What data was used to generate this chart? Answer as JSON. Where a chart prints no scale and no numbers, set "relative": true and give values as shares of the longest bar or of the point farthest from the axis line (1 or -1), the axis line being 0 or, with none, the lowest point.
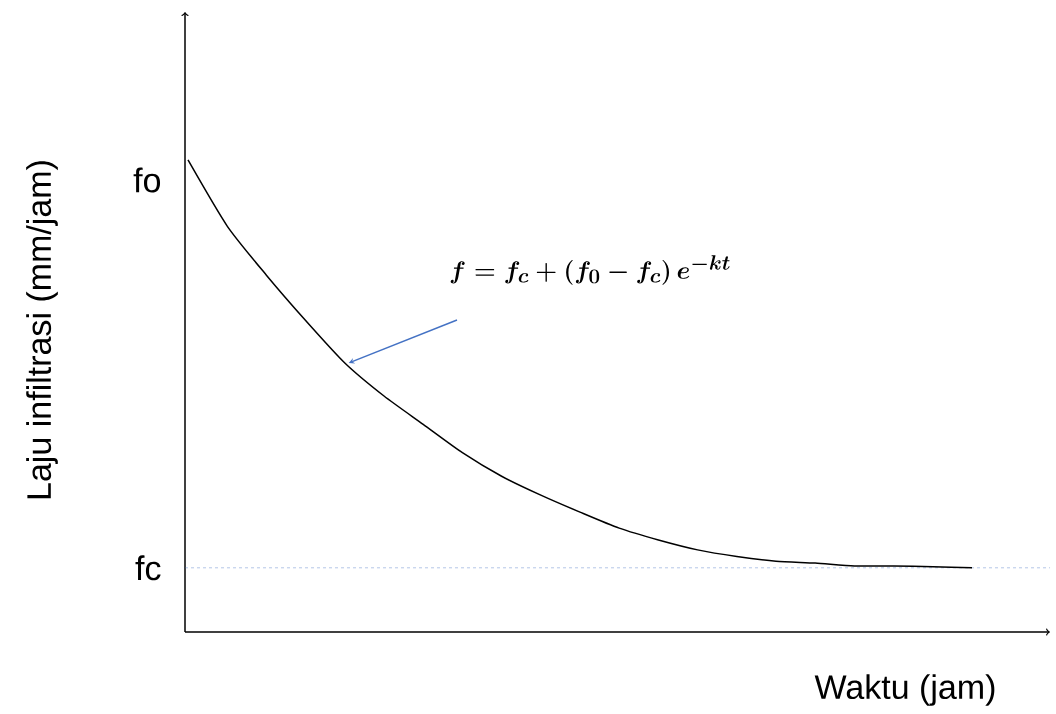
{
  "chart_data": {
    "type": "line",
    "relative": true,
    "xlabel": "Waktu (jam)",
    "ylabel": "Laju infiltrasi (mm/jam)",
    "categories": [
      null,
      null,
      null,
      null,
      null,
      null,
      null,
      null,
      null,
      null,
      null,
      null,
      null,
      null,
      null,
      null,
      null,
      null,
      null,
      null,
      null
    ],
    "series": [
      {
        "color": "#000000",
        "values": [
          1,
          0.86,
          0.756,
          0.66,
          0.57,
          0.5,
          0.44,
          0.38,
          0.33,
          0.29,
          0.254,
          0.22,
          0.195,
          0.174,
          0.16,
          0.15,
          0.146,
          0.14,
          0.14,
          0.138,
          0.136
        ]
      }
    ],
    "ref_lines": [
      {
        "axis": "y",
        "value": 0.136,
        "label": "fc",
        "color": "#4472c4",
        "line_style": "dashed"
      }
    ],
    "annotations": [
      "f=f_c+(f_0-f_c)\\,e^{-kt}",
      "fo"
    ]
  }
}
